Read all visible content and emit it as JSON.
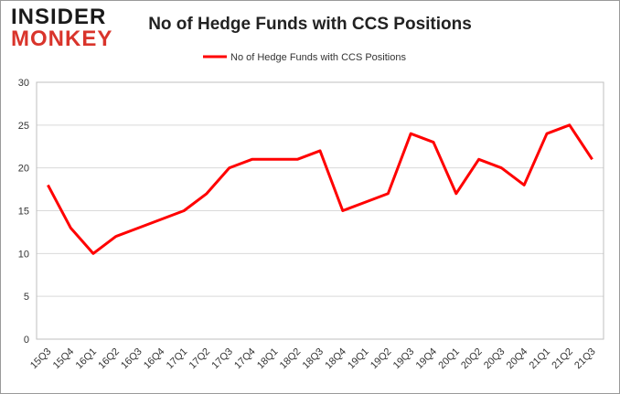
{
  "logo": {
    "line1": "INSIDER",
    "line2": "MONKEY"
  },
  "chart_data": {
    "type": "line",
    "title": "No of Hedge Funds with CCS Positions",
    "categories": [
      "15Q3",
      "15Q4",
      "16Q1",
      "16Q2",
      "16Q3",
      "16Q4",
      "17Q1",
      "17Q2",
      "17Q3",
      "17Q4",
      "18Q1",
      "18Q2",
      "18Q3",
      "18Q4",
      "19Q1",
      "19Q2",
      "19Q3",
      "19Q4",
      "20Q1",
      "20Q2",
      "20Q3",
      "20Q4",
      "21Q1",
      "21Q2",
      "21Q3"
    ],
    "series": [
      {
        "name": "No of Hedge Funds with CCS Positions",
        "color": "#ff0000",
        "values": [
          18,
          13,
          10,
          12,
          13,
          14,
          15,
          17,
          20,
          21,
          21,
          21,
          22,
          15,
          16,
          17,
          24,
          23,
          17,
          21,
          20,
          18,
          24,
          25,
          21
        ]
      }
    ],
    "ylim": [
      0,
      30
    ],
    "yticks": [
      0,
      5,
      10,
      15,
      20,
      25,
      30
    ],
    "grid": true,
    "legend": "top"
  }
}
